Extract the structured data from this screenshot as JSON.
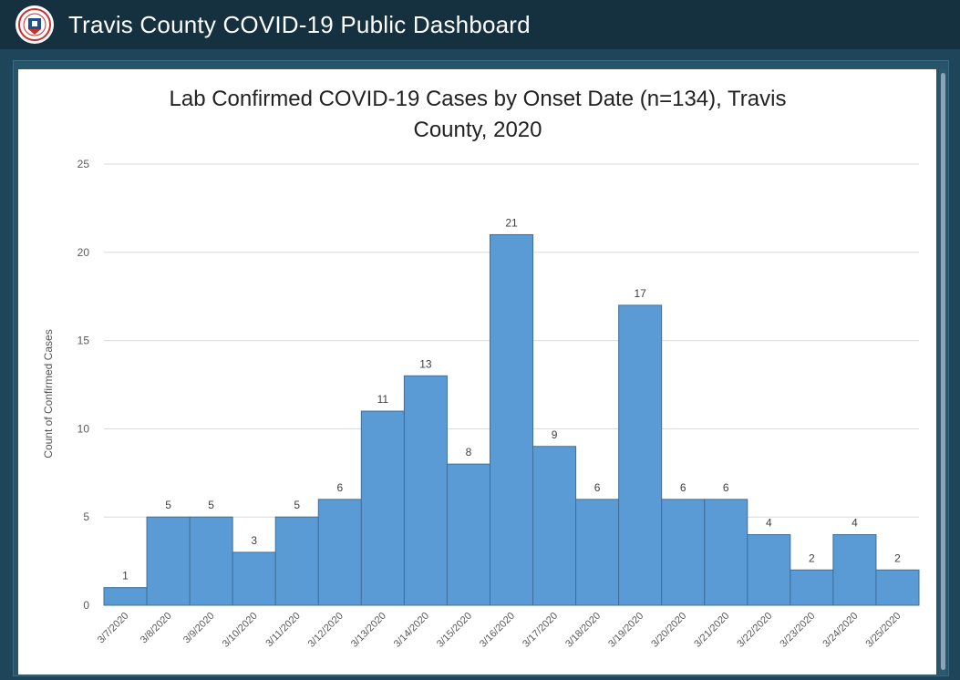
{
  "header": {
    "title": "Travis County COVID-19 Public Dashboard",
    "logo_icon": "county-seal-icon"
  },
  "colors": {
    "header_bg": "#15303f",
    "page_bg": "#1e4559",
    "bar_fill": "#5b9bd5",
    "bar_stroke": "#3f6f99"
  },
  "chart_data": {
    "type": "bar",
    "title_lines": [
      "Lab Confirmed COVID-19 Cases by Onset Date (n=134), Travis",
      "County, 2020"
    ],
    "xlabel": "",
    "ylabel": "Count of Confirmed Cases",
    "ylim": [
      0,
      25
    ],
    "yticks": [
      0,
      5,
      10,
      15,
      20,
      25
    ],
    "grid": true,
    "legend": "none",
    "categories": [
      "3/7/2020",
      "3/8/2020",
      "3/9/2020",
      "3/10/2020",
      "3/11/2020",
      "3/12/2020",
      "3/13/2020",
      "3/14/2020",
      "3/15/2020",
      "3/16/2020",
      "3/17/2020",
      "3/18/2020",
      "3/19/2020",
      "3/20/2020",
      "3/21/2020",
      "3/22/2020",
      "3/23/2020",
      "3/24/2020",
      "3/25/2020"
    ],
    "values": [
      1,
      5,
      5,
      3,
      5,
      6,
      11,
      13,
      8,
      21,
      9,
      6,
      17,
      6,
      6,
      4,
      2,
      4,
      2
    ]
  }
}
